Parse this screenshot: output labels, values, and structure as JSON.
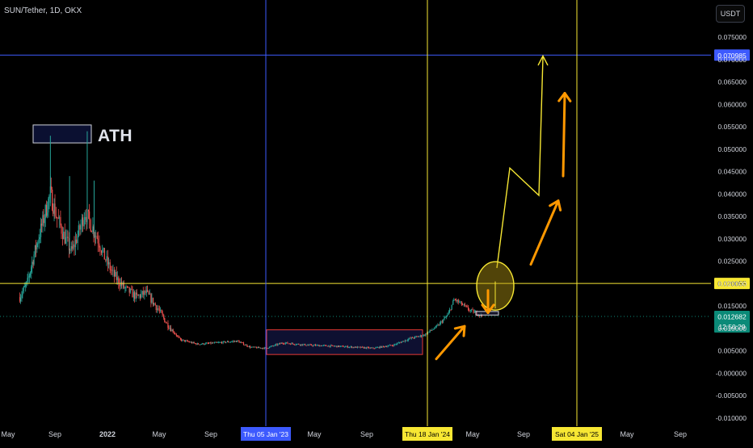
{
  "header": {
    "symbol_label": "SUN/Tether, 1D, OKX",
    "currency_button": "USDT"
  },
  "colors": {
    "background": "#000000",
    "up": "#26a69a",
    "down": "#ef5350",
    "blue_line": "#3d5afe",
    "yellow_line": "#f7e733",
    "orange_arrow": "#ff9800",
    "price_badge": "#0b8a78"
  },
  "chart_data": {
    "type": "candlestick",
    "title": "SUN/Tether, 1D, OKX",
    "ylabel": "USDT",
    "ylim": [
      -0.012,
      0.0795
    ],
    "yticks": [
      0.075,
      0.07,
      0.065,
      0.06,
      0.055,
      0.05,
      0.045,
      0.04,
      0.035,
      0.03,
      0.025,
      0.02,
      0.015,
      0.01,
      0.005,
      0.0,
      -0.005,
      -0.01
    ],
    "ytick_labels": [
      "0.075000",
      "0.070000",
      "0.065000",
      "0.060000",
      "0.055000",
      "0.050000",
      "0.045000",
      "0.040000",
      "0.035000",
      "0.030000",
      "0.025000",
      "0.020000",
      "0.015000",
      "0.010000",
      "0.005000",
      "-0.000000",
      "-0.005000",
      "-0.010000"
    ],
    "xticks": [
      {
        "label": "May",
        "date": "2021-05-01"
      },
      {
        "label": "Sep",
        "date": "2021-09-01"
      },
      {
        "label": "2022",
        "date": "2022-01-01"
      },
      {
        "label": "May",
        "date": "2022-05-01"
      },
      {
        "label": "Sep",
        "date": "2022-09-01"
      },
      {
        "label": "May",
        "date": "2023-05-01"
      },
      {
        "label": "Sep",
        "date": "2023-09-01"
      },
      {
        "label": "May",
        "date": "2024-05-01"
      },
      {
        "label": "Sep",
        "date": "2024-09-01"
      },
      {
        "label": "May",
        "date": "2025-05-01"
      },
      {
        "label": "Sep",
        "date": "2025-09-01"
      }
    ],
    "x_range": [
      "2021-04-15",
      "2025-10-20"
    ],
    "price_path": [
      {
        "date": "2021-06-01",
        "price": 0.017
      },
      {
        "date": "2021-06-20",
        "price": 0.02
      },
      {
        "date": "2021-07-10",
        "price": 0.027
      },
      {
        "date": "2021-08-01",
        "price": 0.034
      },
      {
        "date": "2021-08-20",
        "price": 0.04
      },
      {
        "date": "2021-09-05",
        "price": 0.035
      },
      {
        "date": "2021-09-25",
        "price": 0.03
      },
      {
        "date": "2021-10-10",
        "price": 0.027
      },
      {
        "date": "2021-10-25",
        "price": 0.031
      },
      {
        "date": "2021-11-10",
        "price": 0.036
      },
      {
        "date": "2021-11-25",
        "price": 0.033
      },
      {
        "date": "2021-12-10",
        "price": 0.03
      },
      {
        "date": "2021-12-25",
        "price": 0.026
      },
      {
        "date": "2022-01-15",
        "price": 0.022
      },
      {
        "date": "2022-02-10",
        "price": 0.019
      },
      {
        "date": "2022-03-10",
        "price": 0.017
      },
      {
        "date": "2022-04-01",
        "price": 0.018
      },
      {
        "date": "2022-05-01",
        "price": 0.014
      },
      {
        "date": "2022-05-20",
        "price": 0.011
      },
      {
        "date": "2022-06-20",
        "price": 0.0075
      },
      {
        "date": "2022-08-01",
        "price": 0.0065
      },
      {
        "date": "2022-09-15",
        "price": 0.0068
      },
      {
        "date": "2022-11-01",
        "price": 0.0072
      },
      {
        "date": "2022-12-01",
        "price": 0.0058
      },
      {
        "date": "2023-01-05",
        "price": 0.0056
      },
      {
        "date": "2023-02-15",
        "price": 0.0068
      },
      {
        "date": "2023-04-15",
        "price": 0.0063
      },
      {
        "date": "2023-07-01",
        "price": 0.006
      },
      {
        "date": "2023-09-15",
        "price": 0.0056
      },
      {
        "date": "2023-11-01",
        "price": 0.0063
      },
      {
        "date": "2023-12-10",
        "price": 0.0078
      },
      {
        "date": "2024-01-10",
        "price": 0.0085
      },
      {
        "date": "2024-02-10",
        "price": 0.0105
      },
      {
        "date": "2024-03-05",
        "price": 0.013
      },
      {
        "date": "2024-03-20",
        "price": 0.0165
      },
      {
        "date": "2024-04-05",
        "price": 0.0155
      },
      {
        "date": "2024-04-25",
        "price": 0.014
      },
      {
        "date": "2024-05-10",
        "price": 0.0135
      },
      {
        "date": "2024-05-25",
        "price": 0.0127
      }
    ],
    "spikes": [
      {
        "date": "2021-08-20",
        "high": 0.053
      },
      {
        "date": "2021-11-15",
        "high": 0.054
      },
      {
        "date": "2021-10-05",
        "high": 0.044
      },
      {
        "date": "2021-12-01",
        "high": 0.043
      }
    ],
    "horizontal_lines": [
      {
        "price": 0.070985,
        "label": "0.070985",
        "color": "blue_line"
      },
      {
        "price": 0.020055,
        "label": "0.020055",
        "color": "yellow_line"
      }
    ],
    "vertical_lines": [
      {
        "date": "2023-01-05",
        "label": "Thu 05 Jan '23",
        "color": "blue_line"
      },
      {
        "date": "2024-01-18",
        "label": "Thu 18 Jan '24",
        "color": "yellow_line"
      },
      {
        "date": "2025-01-04",
        "label": "Sat 04 Jan '25",
        "color": "yellow_line"
      }
    ],
    "current_price": {
      "value": 0.012682,
      "label": "0.012682",
      "countdown": "12:50:29"
    },
    "annotations": {
      "ath_label": "ATH"
    }
  }
}
